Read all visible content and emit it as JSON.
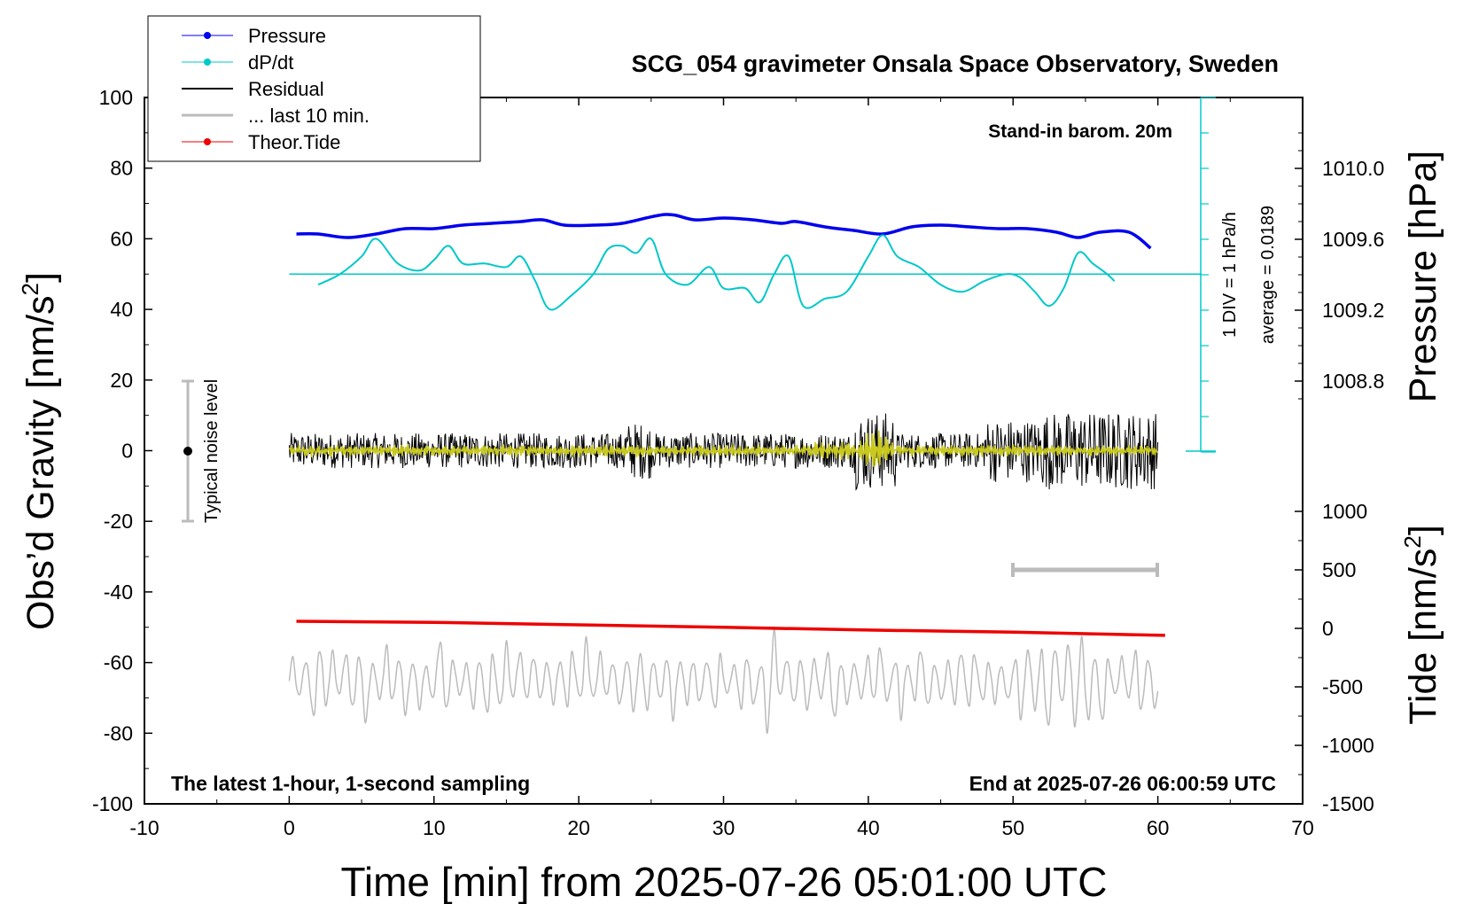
{
  "chart_data": {
    "type": "line",
    "title": "SCG_054 gravimeter Onsala Space Observatory, Sweden",
    "xlabel": "Time [min] from 2025-07-26 05:01:00 UTC",
    "ylabel": "Obs’d Gravity [nm/s",
    "ylabel_sup": "2",
    "ylabel_end": "]",
    "y2label": "Pressure [hPa]",
    "y3label": "Tide [nm/s",
    "y3label_sup": "2",
    "y3label_end": "]",
    "xlim": [
      -10,
      70
    ],
    "ylim": [
      -100,
      100
    ],
    "x_ticks": [
      "-10",
      "0",
      "10",
      "20",
      "30",
      "40",
      "50",
      "60",
      "70"
    ],
    "y_ticks": [
      "100",
      "80",
      "60",
      "40",
      "20",
      "0",
      "-20",
      "-40",
      "-60",
      "-80",
      "-100"
    ],
    "pressure_ticks": [
      "1010.0",
      "1009.6",
      "1009.2",
      "1008.8"
    ],
    "pressure_tick_values": [
      1010.0,
      1009.6,
      1009.2,
      1008.8
    ],
    "tide_ticks": [
      "1000",
      "500",
      "0",
      "-500",
      "-1000",
      "-1500"
    ],
    "tide_tick_values": [
      1000,
      500,
      0,
      -500,
      -1000,
      -1500
    ],
    "annotations": {
      "stand_in": "Stand-in barom. 20m",
      "div_label": "1 DIV = 1 hPa/h",
      "average_label": "average = 0.0189",
      "noise_label": "Typical noise level",
      "sampling": "The latest 1-hour, 1-second sampling",
      "end_time": "End at 2025-07-26 06:00:59 UTC"
    },
    "legend_position": "top-left",
    "series": [
      {
        "name": "Pressure",
        "color": "#0000ee",
        "axis": "pressure",
        "x": [
          0.5,
          2,
          4,
          6,
          8,
          10,
          12,
          14,
          16,
          17.5,
          19,
          21,
          23,
          26,
          28,
          30,
          32,
          34,
          35,
          37,
          39,
          41,
          43,
          45,
          47,
          49,
          51,
          53,
          54.5,
          56,
          58,
          59.5
        ],
        "y": [
          1009.63,
          1009.63,
          1009.61,
          1009.63,
          1009.66,
          1009.66,
          1009.68,
          1009.69,
          1009.7,
          1009.71,
          1009.68,
          1009.68,
          1009.69,
          1009.74,
          1009.71,
          1009.72,
          1009.71,
          1009.69,
          1009.7,
          1009.67,
          1009.65,
          1009.63,
          1009.67,
          1009.68,
          1009.67,
          1009.66,
          1009.66,
          1009.64,
          1009.61,
          1009.64,
          1009.64,
          1009.55
        ]
      },
      {
        "name": "dP/dt",
        "color": "#00c8c8",
        "axis": "gravity",
        "x": [
          2,
          3.5,
          5,
          6,
          7.5,
          9,
          10,
          11,
          12,
          13.5,
          15,
          16,
          17,
          18,
          19.5,
          21,
          22,
          23,
          24,
          25,
          26,
          27.5,
          29,
          30,
          31.5,
          32.5,
          33.5,
          34.5,
          35.5,
          37,
          38.5,
          40,
          41,
          42,
          43.5,
          45,
          46.5,
          48,
          49.5,
          50.5,
          51.5,
          52.5,
          53.5,
          54.5,
          55.5,
          56.5,
          57
        ],
        "y": [
          47,
          50,
          55,
          60,
          53,
          51,
          54,
          58,
          53,
          53,
          52,
          55,
          48,
          40,
          44,
          50,
          57,
          58,
          56,
          60,
          50,
          47,
          52,
          46,
          46,
          42,
          50,
          55,
          41,
          43,
          45,
          55,
          61,
          55,
          52,
          47,
          45,
          48,
          50,
          49,
          45,
          41,
          46,
          56,
          53,
          50,
          48
        ]
      },
      {
        "name": "Residual",
        "color": "#000000",
        "axis": "gravity",
        "x": [
          0,
          10,
          20,
          24,
          30,
          35,
          40,
          41,
          45,
          50,
          55,
          60
        ],
        "y": [
          0,
          0,
          0,
          0,
          0,
          0,
          0,
          0,
          0,
          0,
          0,
          0
        ]
      },
      {
        "name": "... last 10 min.",
        "color": "#bbbbbb",
        "axis": "tide",
        "x": [
          50,
          60
        ],
        "y": [
          500,
          500
        ]
      },
      {
        "name": "Theor.Tide",
        "color": "#ee0000",
        "axis": "gravity",
        "x": [
          0.5,
          10,
          20,
          30,
          40,
          50,
          60.5
        ],
        "y": [
          -48.3,
          -48.6,
          -49.3,
          -50.0,
          -50.8,
          -51.4,
          -52.3
        ]
      }
    ]
  }
}
